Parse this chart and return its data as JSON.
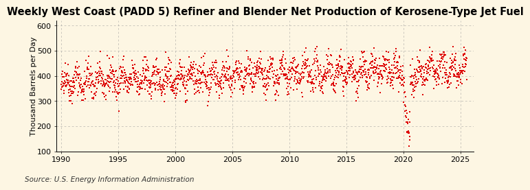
{
  "title": "Weekly West Coast (PADD 5) Refiner and Blender Net Production of Kerosene-Type Jet Fuel",
  "ylabel": "Thousand Barrels per Day",
  "source": "Source: U.S. Energy Information Administration",
  "xlim": [
    1989.6,
    2026.2
  ],
  "ylim": [
    100,
    620
  ],
  "yticks": [
    100,
    200,
    300,
    400,
    500,
    600
  ],
  "xticks": [
    1990,
    1995,
    2000,
    2005,
    2010,
    2015,
    2020,
    2025
  ],
  "dot_color": "#dd0000",
  "background_color": "#fdf6e3",
  "grid_color": "#999999",
  "title_fontsize": 10.5,
  "ylabel_fontsize": 8,
  "source_fontsize": 7.5,
  "tick_fontsize": 8
}
